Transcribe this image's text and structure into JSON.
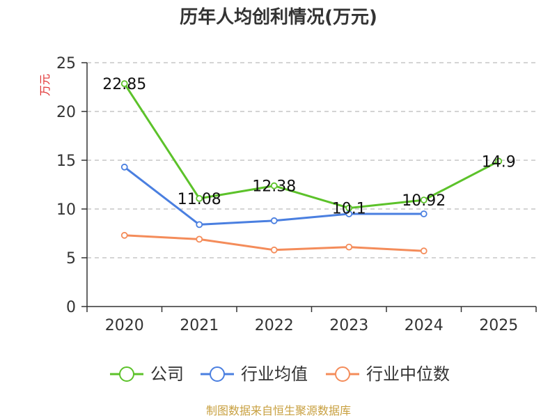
{
  "chart_data": {
    "type": "line",
    "title": "历年人均创利情况(万元)",
    "ylabel": "万元",
    "xlabel": "",
    "categories": [
      "2020",
      "2021",
      "2022",
      "2023",
      "2024",
      "2025"
    ],
    "ylim": [
      0,
      25
    ],
    "yticks": [
      0,
      5,
      10,
      15,
      20,
      25
    ],
    "grid": true,
    "legend_position": "bottom",
    "series": [
      {
        "name": "公司",
        "color": "#5cc22a",
        "values": [
          22.85,
          11.08,
          12.38,
          10.1,
          10.92,
          14.9
        ],
        "labels": [
          "22.85",
          "11.08",
          "12.38",
          "10.1",
          "10.92",
          "14.9"
        ]
      },
      {
        "name": "行业均值",
        "color": "#4a7fe0",
        "values": [
          14.3,
          8.4,
          8.8,
          9.5,
          9.5,
          null
        ]
      },
      {
        "name": "行业中位数",
        "color": "#f48c5a",
        "values": [
          7.3,
          6.9,
          5.8,
          6.1,
          5.7,
          null
        ]
      }
    ],
    "source": "制图数据来自恒生聚源数据库"
  }
}
